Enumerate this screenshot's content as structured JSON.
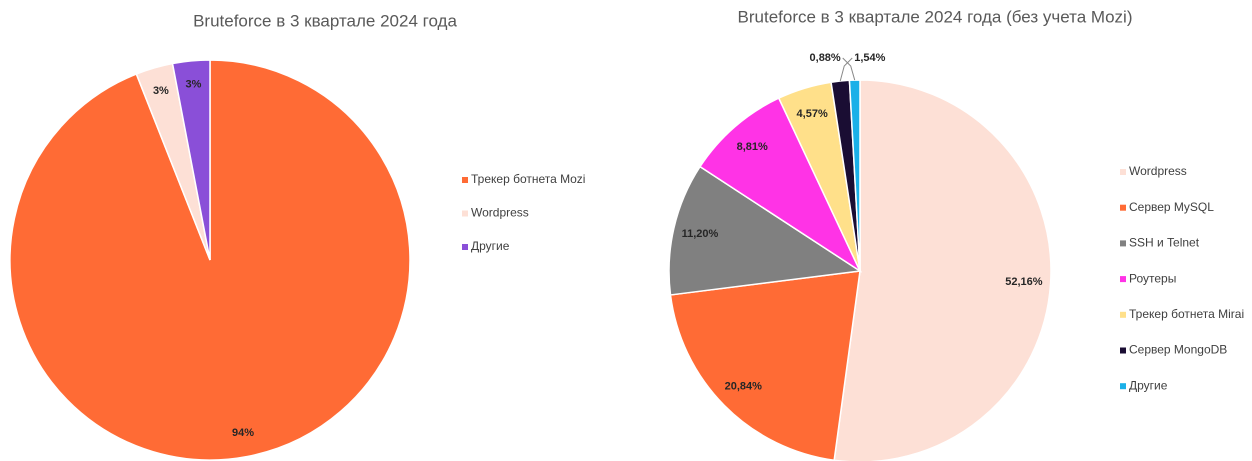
{
  "chart_data": [
    {
      "type": "pie",
      "title": "Bruteforce в 3 квартале 2024 года",
      "categories": [
        "Трекер ботнета Mozi",
        "Wordpress",
        "Другие"
      ],
      "values": [
        94,
        3,
        3
      ],
      "value_labels": [
        "94%",
        "3%",
        "3%"
      ],
      "colors": [
        "#ff6b35",
        "#fde0d6",
        "#8a4fd8"
      ],
      "legend": "right"
    },
    {
      "type": "pie",
      "title": "Bruteforce в 3 квартале 2024 года (без учета Mozi)",
      "categories": [
        "Wordpress",
        "Сервер MySQL",
        "SSH и Telnet",
        "Роутеры",
        "Трекер ботнета Mirai",
        "Сервер MongoDB",
        "Другие"
      ],
      "values": [
        52.16,
        20.84,
        11.2,
        8.81,
        4.57,
        1.54,
        0.88
      ],
      "value_labels": [
        "52,16%",
        "20,84%",
        "11,20%",
        "8,81%",
        "4,57%",
        "1,54%",
        "0,88%"
      ],
      "colors": [
        "#fde0d6",
        "#ff6b35",
        "#808080",
        "#ff33e6",
        "#ffe08a",
        "#1a0d33",
        "#1ab0e8"
      ],
      "legend": "right"
    }
  ]
}
